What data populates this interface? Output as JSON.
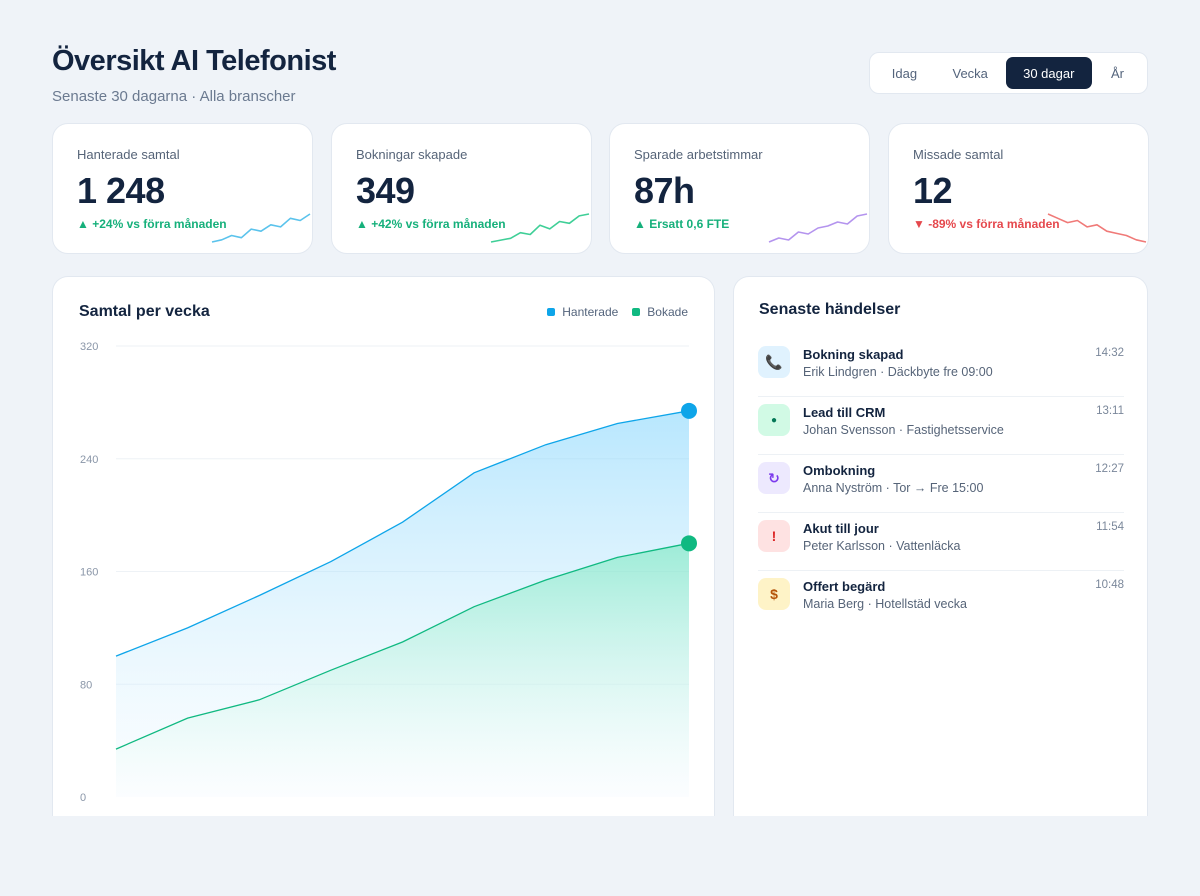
{
  "header": {
    "title": "Översikt AI Telefonist",
    "subtitle": "Senaste 30 dagarna · Alla branscher"
  },
  "range_tabs": [
    {
      "label": "Idag",
      "active": false
    },
    {
      "label": "Vecka",
      "active": false
    },
    {
      "label": "30 dagar",
      "active": true
    },
    {
      "label": "År",
      "active": false
    }
  ],
  "kpis": [
    {
      "label": "Hanterade samtal",
      "value": "1 248",
      "delta": "▲ +24% vs förra månaden",
      "trend": "up",
      "color": "#5bc3ec",
      "spark": [
        2,
        3,
        5,
        4,
        8,
        7,
        10,
        9,
        13,
        12,
        15
      ]
    },
    {
      "label": "Bokningar skapade",
      "value": "349",
      "delta": "▲ +42% vs förra månaden",
      "trend": "up",
      "color": "#3fcf97",
      "spark": [
        1,
        2,
        3,
        6,
        5,
        10,
        8,
        12,
        11,
        15,
        16
      ]
    },
    {
      "label": "Sparade arbetstimmar",
      "value": "87h",
      "delta": "▲ Ersatt 0,6 FTE",
      "trend": "up",
      "color": "#b494ee",
      "spark": [
        1,
        3,
        2,
        6,
        5,
        8,
        9,
        11,
        10,
        14,
        15
      ]
    },
    {
      "label": "Missade samtal",
      "value": "12",
      "delta": "▼ -89% vs förra månaden",
      "trend": "down",
      "color": "#f07a78",
      "spark": [
        15,
        13,
        11,
        12,
        9,
        10,
        7,
        6,
        5,
        3,
        2
      ]
    }
  ],
  "chart": {
    "title": "Samtal per vecka",
    "legend": [
      {
        "label": "Hanterade",
        "color": "#0ea5e9"
      },
      {
        "label": "Bokade",
        "color": "#10b981"
      }
    ]
  },
  "chart_data": {
    "type": "area",
    "title": "Samtal per vecka",
    "x": [
      1,
      2,
      3,
      4,
      5,
      6,
      7,
      8,
      9
    ],
    "series": [
      {
        "name": "Hanterade",
        "color": "#0ea5e9",
        "values": [
          100,
          120,
          143,
          167,
          195,
          230,
          250,
          265,
          274
        ]
      },
      {
        "name": "Bokade",
        "color": "#10b981",
        "values": [
          34,
          56,
          69,
          90,
          110,
          135,
          154,
          170,
          180
        ]
      }
    ],
    "y_ticks": [
      0,
      80,
      160,
      240,
      320
    ],
    "ylim": [
      0,
      320
    ],
    "grid": true,
    "legend_position": "top-right"
  },
  "events": {
    "title": "Senaste händelser",
    "items": [
      {
        "icon": "phone-icon",
        "glyph": "📞",
        "bg": "#e0f2fe",
        "fg": "#0369a1",
        "title": "Bokning skapad",
        "sub": "Erik Lindgren · Däckbyte fre 09:00",
        "time": "14:32"
      },
      {
        "icon": "dot-icon",
        "glyph": "●",
        "bg": "#d1fae5",
        "fg": "#047857",
        "title": "Lead till CRM",
        "sub": "Johan Svensson · Fastighetsservice",
        "time": "13:11"
      },
      {
        "icon": "refresh-icon",
        "glyph": "↻",
        "bg": "#ede9fe",
        "fg": "#7c3aed",
        "title": "Ombokning",
        "sub": "Anna Nyström · Tor → Fre 15:00",
        "time": "12:27"
      },
      {
        "icon": "alert-icon",
        "glyph": "!",
        "bg": "#fee2e2",
        "fg": "#dc2626",
        "title": "Akut till jour",
        "sub": "Peter Karlsson · Vattenläcka",
        "time": "11:54"
      },
      {
        "icon": "dollar-icon",
        "glyph": "$",
        "bg": "#fef3c7",
        "fg": "#b45309",
        "title": "Offert begärd",
        "sub": "Maria Berg · Hotellstäd vecka",
        "time": "10:48"
      }
    ]
  }
}
